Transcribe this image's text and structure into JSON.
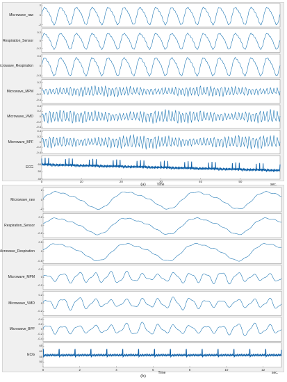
{
  "chart_data": [
    {
      "type": "line",
      "caption": "(a)",
      "xlabel": "Time",
      "x_unit": "sec.",
      "xlim": [
        0,
        60
      ],
      "x_ticks": [
        0,
        10,
        20,
        30,
        40,
        50
      ],
      "colors": {
        "line": "#1f77b4",
        "ecg": "#1061a8",
        "background": "#ffffff",
        "frame": "#f0f0f0"
      },
      "series": [
        {
          "name": "Microwave_raw",
          "ylim": [
            -2.5,
            2.5
          ],
          "y_ticks": [
            "2",
            "0",
            "-2"
          ],
          "waveform": "breathing",
          "cycles": 15,
          "amplitude": 2
        },
        {
          "name": "Respiration_Sensor",
          "ylim": [
            -0.3,
            0.3
          ],
          "y_ticks": [
            "0.2",
            "0",
            "-0.2"
          ],
          "waveform": "breathing",
          "cycles": 15,
          "amplitude": 0.22
        },
        {
          "name": "Microwave_Respiration",
          "ylim": [
            -0.6,
            0.6
          ],
          "y_ticks": [
            "0.5",
            "0",
            "-0.5"
          ],
          "waveform": "breathing",
          "cycles": 15,
          "amplitude": 0.5
        },
        {
          "name": "Microwave_MPM",
          "ylim": [
            -0.5,
            0.3
          ],
          "y_ticks": [
            "0.2",
            "0",
            "-0.2",
            "-0.4"
          ],
          "waveform": "heartbeat",
          "cycles": 68,
          "amplitude": 0.18
        },
        {
          "name": "Microwave_VMD",
          "ylim": [
            -0.45,
            0.45
          ],
          "y_ticks": [
            "0.4",
            "0.2",
            "0",
            "-0.2",
            "-0.4"
          ],
          "waveform": "heartbeat",
          "cycles": 68,
          "amplitude": 0.25
        },
        {
          "name": "Microwave_BPF",
          "ylim": [
            -0.45,
            0.45
          ],
          "y_ticks": [
            "0.4",
            "0.2",
            "0",
            "-0.2",
            "-0.4"
          ],
          "waveform": "heartbeat",
          "cycles": 68,
          "amplitude": 0.25
        },
        {
          "name": "ECG",
          "ylim": [
            40,
            72
          ],
          "y_ticks": [
            "60",
            "50",
            "40"
          ],
          "waveform": "ecg",
          "cycles": 70,
          "amplitude": 8
        }
      ]
    },
    {
      "type": "line",
      "caption": "(b)",
      "xlabel": "Time",
      "x_unit": "sec.",
      "xlim": [
        0,
        13
      ],
      "x_ticks": [
        0,
        2,
        4,
        6,
        8,
        10,
        12
      ],
      "colors": {
        "line": "#1f77b4",
        "ecg": "#1061a8",
        "background": "#ffffff",
        "frame": "#f0f0f0"
      },
      "series": [
        {
          "name": "Microwave_raw",
          "ylim": [
            -2.6,
            2.6
          ],
          "y_ticks": [
            "2",
            "0",
            "-2"
          ],
          "waveform": "breathing",
          "cycles": 3.4,
          "amplitude": 2
        },
        {
          "name": "Respiration_Sensor",
          "ylim": [
            -0.3,
            0.3
          ],
          "y_ticks": [
            "0.2",
            "0",
            "-0.2"
          ],
          "waveform": "breathing",
          "cycles": 3.4,
          "amplitude": 0.22
        },
        {
          "name": "Microwave_Respiration",
          "ylim": [
            -0.65,
            0.65
          ],
          "y_ticks": [
            "0.5",
            "0",
            "-0.5"
          ],
          "waveform": "breathing",
          "cycles": 3.4,
          "amplitude": 0.5
        },
        {
          "name": "Microwave_MPM",
          "ylim": [
            -0.3,
            0.3
          ],
          "y_ticks": [
            "0.2",
            "0",
            "-0.2"
          ],
          "waveform": "heartbeat",
          "cycles": 15,
          "amplitude": 0.15
        },
        {
          "name": "Microwave_VMD",
          "ylim": [
            -0.3,
            0.3
          ],
          "y_ticks": [
            "0.2",
            "0",
            "-0.2"
          ],
          "waveform": "heartbeat",
          "cycles": 15,
          "amplitude": 0.15
        },
        {
          "name": "Microwave_BPF",
          "ylim": [
            -0.5,
            0.5
          ],
          "y_ticks": [
            "0.4",
            "0.2",
            "0",
            "-0.2",
            "-0.4"
          ],
          "waveform": "heartbeat",
          "cycles": 15,
          "amplitude": 0.25
        },
        {
          "name": "ECG",
          "ylim": [
            45,
            68
          ],
          "y_ticks": [
            "65",
            "60",
            "55",
            "50"
          ],
          "waveform": "ecg",
          "cycles": 15,
          "amplitude": 5
        }
      ]
    }
  ]
}
